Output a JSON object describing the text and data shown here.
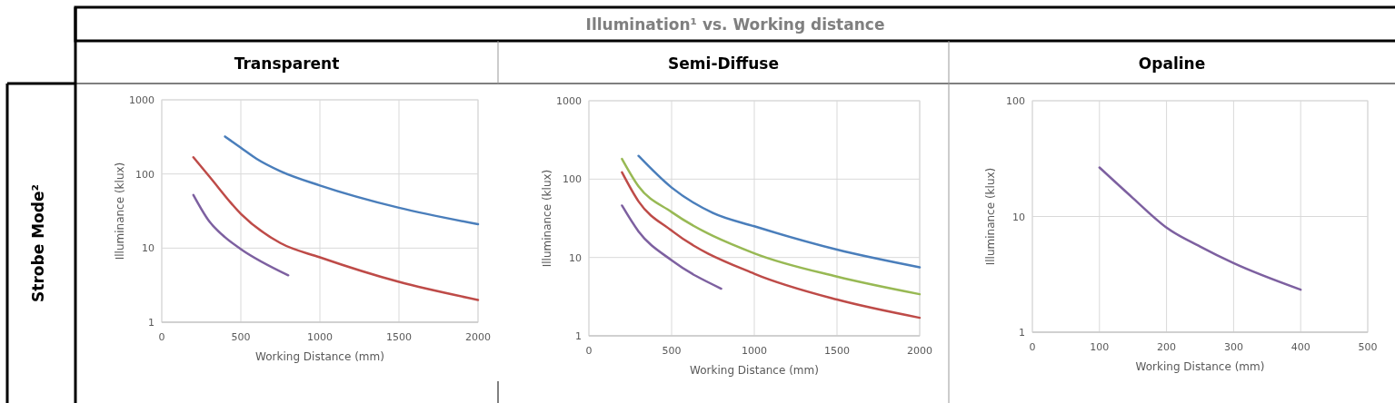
{
  "chart_data": [
    {
      "type": "line",
      "title": "Transparent",
      "xlabel": "Working Distance (mm)",
      "ylabel": "Illuminance (klux)",
      "annotations": [
        "Illumination¹ vs. Working distance",
        "Strobe Mode²"
      ],
      "log": "y",
      "grid": true,
      "xlim": [
        0,
        2000
      ],
      "xticks": [
        0,
        500,
        1000,
        1500,
        2000
      ],
      "ylim": [
        1,
        1000
      ],
      "yticks": [
        1,
        10,
        100,
        1000
      ],
      "line_style": "solid",
      "series": [
        {
          "color": "#4a7ebb",
          "x": [
            400,
            500,
            600,
            750,
            1000,
            1500,
            2000
          ],
          "values": [
            320,
            226,
            160,
            109,
            70,
            35,
            21
          ]
        },
        {
          "color": "#be4b48",
          "x": [
            200,
            300,
            500,
            750,
            1000,
            1500,
            2000
          ],
          "values": [
            168,
            93,
            29,
            11.7,
            7.5,
            3.5,
            2.0
          ]
        },
        {
          "color": "#7d60a0",
          "x": [
            200,
            300,
            400,
            500,
            800
          ],
          "values": [
            52,
            23,
            14,
            9.7,
            4.3
          ]
        }
      ]
    },
    {
      "type": "line",
      "title": "Semi-Diffuse",
      "xlabel": "Working Distance (mm)",
      "ylabel": "Illuminance (klux)",
      "log": "y",
      "grid": true,
      "xlim": [
        0,
        2000
      ],
      "xticks": [
        0,
        500,
        1000,
        1500,
        2000
      ],
      "ylim": [
        1,
        1000
      ],
      "yticks": [
        1,
        10,
        100,
        1000
      ],
      "line_style": "solid",
      "series": [
        {
          "color": "#4a7ebb",
          "x": [
            300,
            500,
            750,
            1000,
            1500,
            2000
          ],
          "values": [
            198,
            78,
            37,
            25,
            12.6,
            7.5
          ]
        },
        {
          "color": "#98b954",
          "x": [
            200,
            300,
            500,
            1000,
            1500,
            2000
          ],
          "values": [
            181,
            81,
            38,
            11.3,
            5.7,
            3.4
          ]
        },
        {
          "color": "#be4b48",
          "x": [
            200,
            300,
            500,
            1000,
            1500,
            2000
          ],
          "values": [
            122,
            52,
            22,
            6.2,
            2.9,
            1.7
          ]
        },
        {
          "color": "#7d60a0",
          "x": [
            200,
            300,
            500,
            800
          ],
          "values": [
            46,
            21.5,
            9.2,
            4.0
          ]
        }
      ]
    },
    {
      "type": "line",
      "title": "Opaline",
      "xlabel": "Working Distance (mm)",
      "ylabel": "Illuminance (klux)",
      "log": "y",
      "grid": true,
      "xlim": [
        0,
        500
      ],
      "xticks": [
        0,
        100,
        200,
        300,
        400,
        500
      ],
      "ylim": [
        1,
        100
      ],
      "yticks": [
        1,
        10,
        100
      ],
      "line_style": "solid",
      "series": [
        {
          "color": "#7d60a0",
          "x": [
            100,
            150,
            200,
            250,
            300,
            400
          ],
          "values": [
            26.5,
            14.4,
            8.0,
            5.5,
            3.95,
            2.33
          ]
        }
      ]
    }
  ]
}
